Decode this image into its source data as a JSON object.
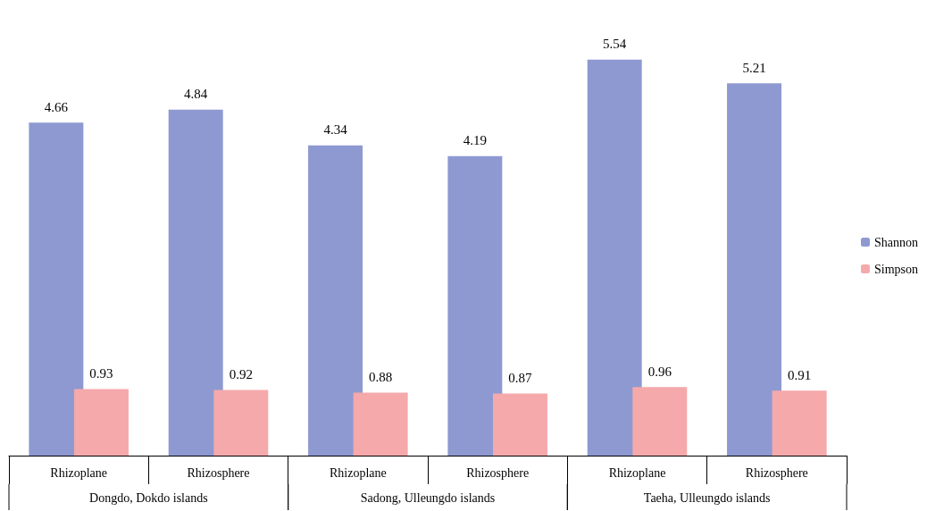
{
  "chart_data": {
    "type": "bar",
    "categories": [
      "Rhizoplane",
      "Rhizosphere",
      "Rhizoplane",
      "Rhizosphere",
      "Rhizoplane",
      "Rhizosphere"
    ],
    "series": [
      {
        "name": "Shannon",
        "color": "#8e99d1",
        "values": [
          4.66,
          4.84,
          4.34,
          4.19,
          5.54,
          5.21
        ]
      },
      {
        "name": "Simpson",
        "color": "#f5a9ab",
        "values": [
          0.93,
          0.92,
          0.88,
          0.87,
          0.96,
          0.91
        ]
      }
    ],
    "annotations": [
      "Dongdo, Dokdo islands",
      "Sadong, Ulleungdo islands",
      "Taeha, Ulleungdo islands"
    ],
    "data_labels": true,
    "legend": "right",
    "grid": false
  }
}
